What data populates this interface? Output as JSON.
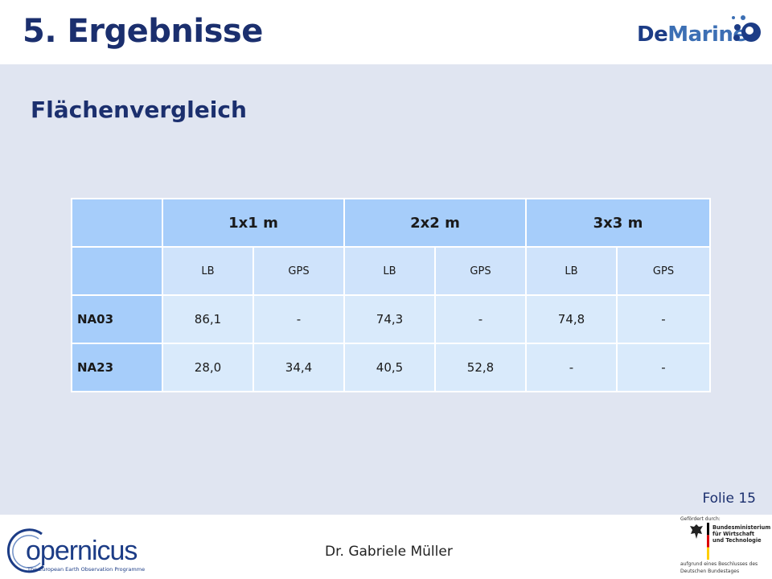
{
  "slide": {
    "title": "5. Ergebnisse",
    "subtitle": "Flächenvergleich",
    "slide_number": "Folie 15"
  },
  "logo": {
    "text_de": "De",
    "text_marine": "Marine"
  },
  "table": {
    "groups": [
      "1x1 m",
      "2x2 m",
      "3x3 m"
    ],
    "subheaders": [
      "LB",
      "GPS",
      "LB",
      "GPS",
      "LB",
      "GPS"
    ],
    "rows": [
      {
        "label": "NA03",
        "values": [
          "86,1",
          "-",
          "74,3",
          "-",
          "74,8",
          "-"
        ]
      },
      {
        "label": "NA23",
        "values": [
          "28,0",
          "34,4",
          "40,5",
          "52,8",
          "-",
          "-"
        ]
      }
    ]
  },
  "footer": {
    "copernicus_text": "opernicus",
    "copernicus_tagline": "The European Earth Observation Programme",
    "presenter": "Dr. Gabriele Müller",
    "sponsor_intro": "Gefördert durch:",
    "ministry_line1": "Bundesministerium",
    "ministry_line2": "für Wirtschaft",
    "ministry_line3": "und Technologie",
    "sponsor_note1": "aufgrund eines Beschlusses des",
    "sponsor_note2": "Deutschen Bundestages"
  },
  "colors": {
    "title": "#1b2f6e",
    "content_bg": "#e0e5f1",
    "header_cell": "#a6cdfa",
    "data_cell": "#d9eafb"
  }
}
